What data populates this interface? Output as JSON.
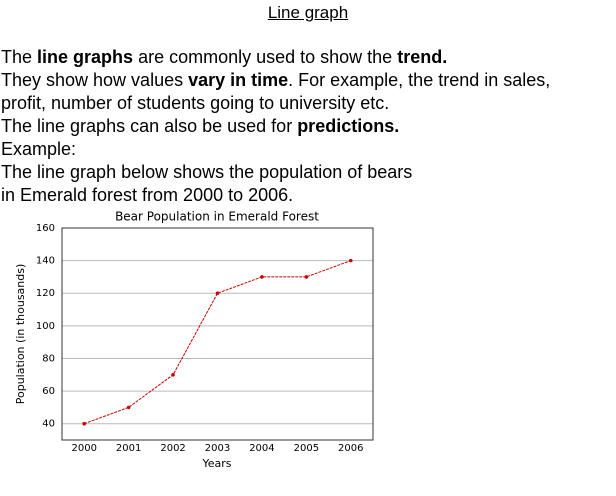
{
  "header": {
    "title": "Line graph"
  },
  "lines": [
    {
      "runs": [
        {
          "text": "The ",
          "bold": false
        },
        {
          "text": "line graphs",
          "bold": true
        },
        {
          "text": " are commonly used to show the ",
          "bold": false
        },
        {
          "text": "trend.",
          "bold": true
        }
      ]
    },
    {
      "runs": [
        {
          "text": "They show how values ",
          "bold": false
        },
        {
          "text": "vary in time",
          "bold": true
        },
        {
          "text": ". For example, the trend in sales,",
          "bold": false
        }
      ]
    },
    {
      "runs": [
        {
          "text": "profit, number of students going to university etc.",
          "bold": false
        }
      ]
    },
    {
      "runs": [
        {
          "text": "The line graphs can also be used for ",
          "bold": false
        },
        {
          "text": "predictions.",
          "bold": true
        }
      ]
    },
    {
      "runs": [
        {
          "text": "Example:",
          "bold": false
        }
      ]
    },
    {
      "runs": [
        {
          "text": "The line graph below shows the population of bears",
          "bold": false
        }
      ]
    },
    {
      "runs": [
        {
          "text": "in Emerald forest from 2000 to 2006.",
          "bold": false
        }
      ]
    }
  ],
  "chart_data": {
    "type": "line",
    "title": "Bear Population in Emerald Forest",
    "x_label": "Years",
    "y_label": "Population (in thousands)",
    "categories": [
      "2000",
      "2001",
      "2002",
      "2003",
      "2004",
      "2005",
      "2006"
    ],
    "values": [
      40,
      50,
      70,
      120,
      130,
      130,
      140
    ],
    "color": "#cc0000",
    "ylim": [
      30,
      160
    ],
    "yticks": [
      40,
      60,
      80,
      100,
      120,
      140,
      160
    ],
    "grid": true
  }
}
